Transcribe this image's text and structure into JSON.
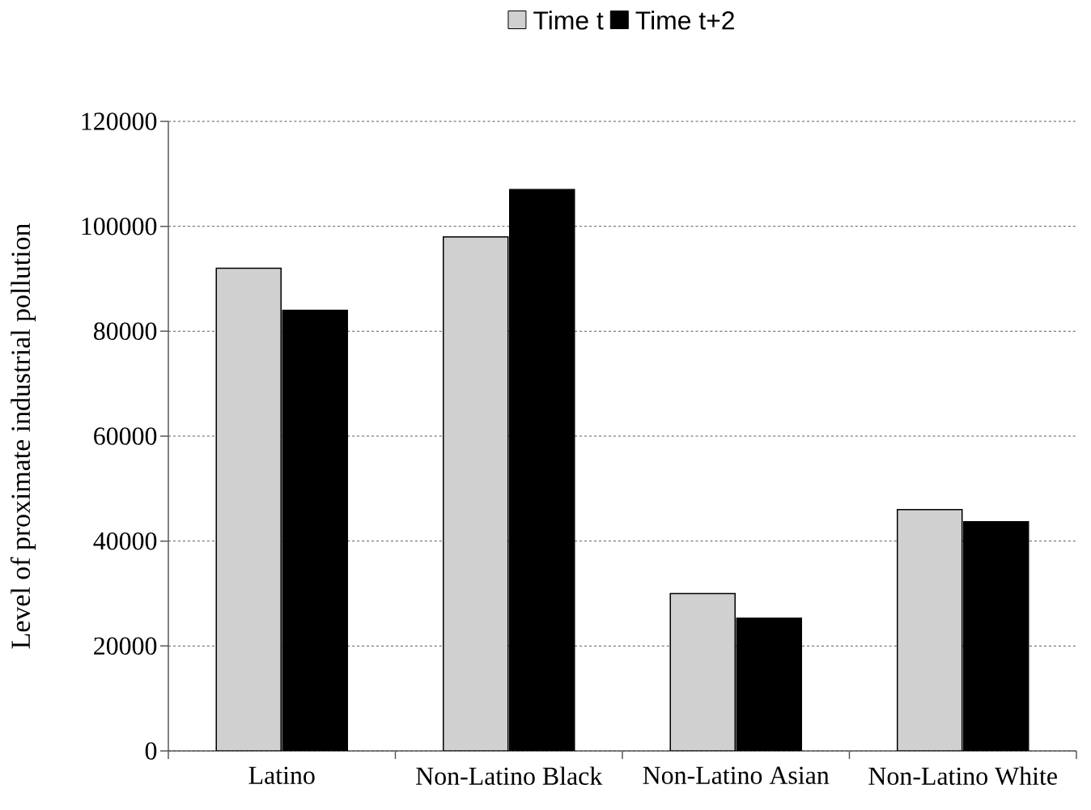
{
  "chart_data": {
    "type": "bar",
    "ylabel": "Level of proximate industrial pollution",
    "categories": [
      "Latino",
      "Non-Latino Black",
      "Non-Latino Asian",
      "Non-Latino White"
    ],
    "series": [
      {
        "name": "Time t",
        "color": "#d0d0d0",
        "values": [
          92000,
          98000,
          30000,
          46000
        ]
      },
      {
        "name": "Time t+2",
        "color": "#000000",
        "values": [
          84000,
          107000,
          25300,
          43700
        ]
      }
    ],
    "ylim": [
      0,
      120000
    ],
    "yticks": [
      0,
      20000,
      40000,
      60000,
      80000,
      100000,
      120000
    ],
    "grid": "y",
    "legend": "top"
  }
}
